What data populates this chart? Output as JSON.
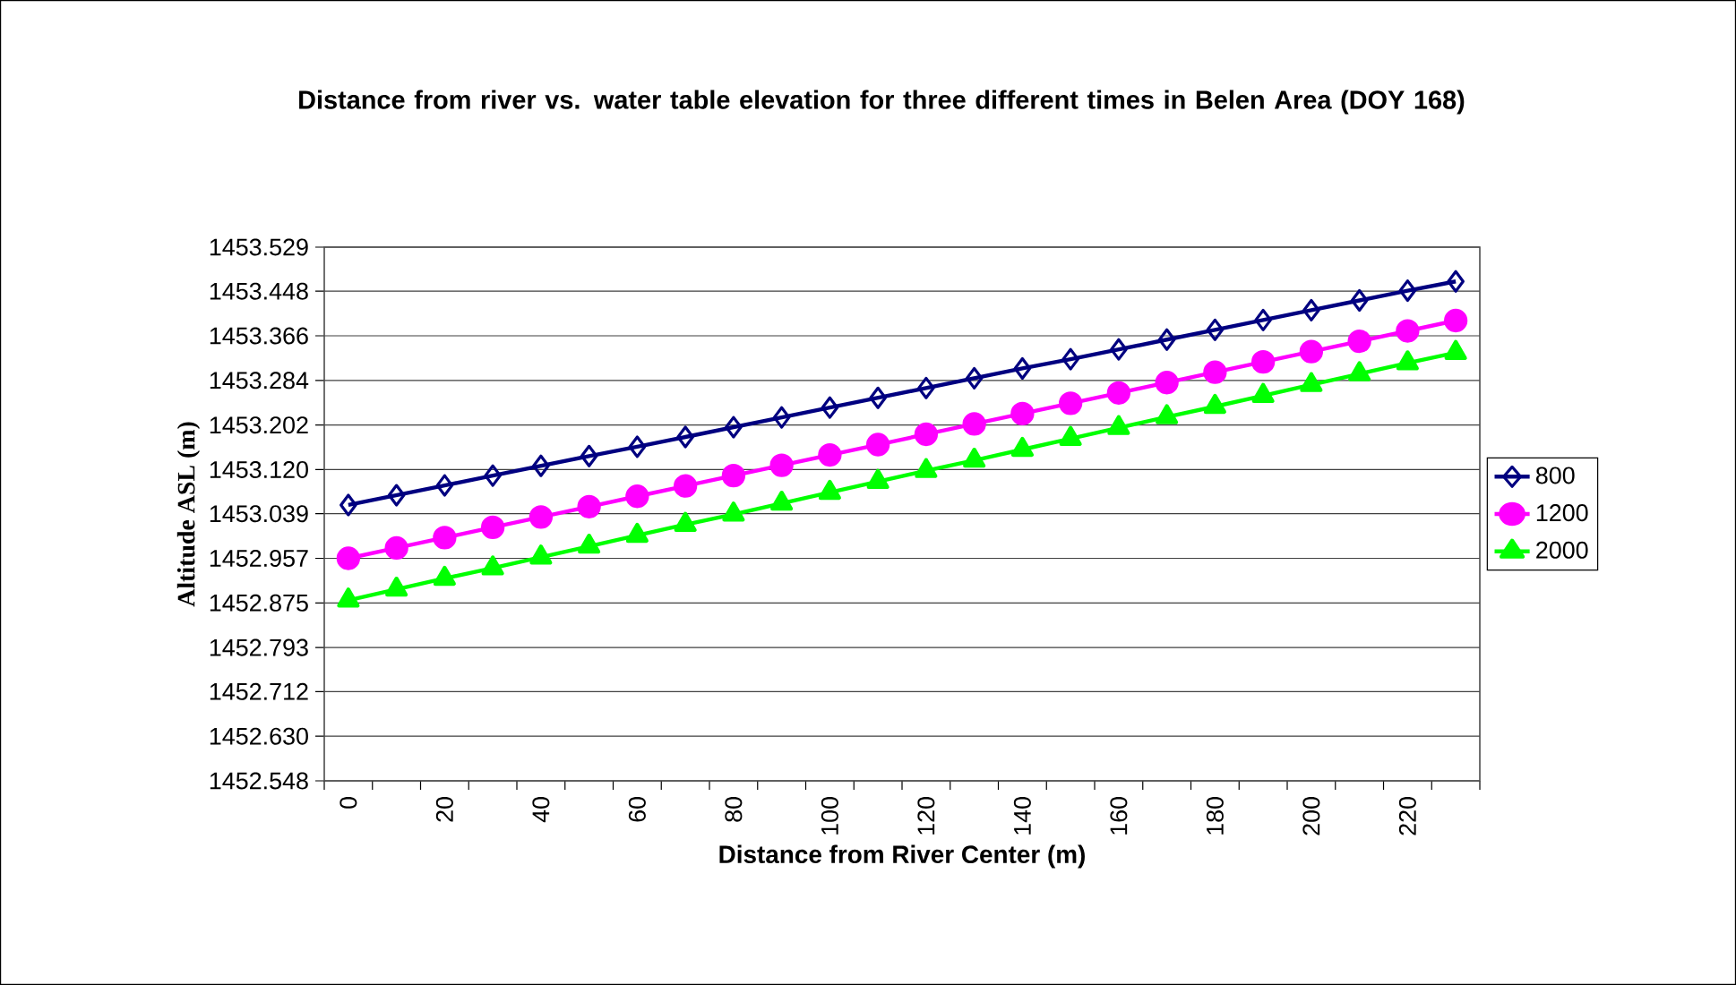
{
  "chart_data": {
    "type": "line",
    "title": "Distance from river vs. water table elevation for three different times in Belen  Area (DOY 168)",
    "xlabel": "Distance from River Center (m)",
    "ylabel": "Altitude ASL (m)",
    "categories": [
      "0",
      null,
      "20",
      null,
      "40",
      null,
      "60",
      null,
      "80",
      null,
      "100",
      null,
      "120",
      null,
      "140",
      null,
      "160",
      null,
      "180",
      null,
      "200",
      null,
      "220",
      null
    ],
    "series": [
      {
        "name": "800",
        "color": "#000080",
        "marker": "diamond",
        "values": [
          1453.055,
          1453.073,
          1453.091,
          1453.109,
          1453.127,
          1453.145,
          1453.162,
          1453.18,
          1453.198,
          1453.216,
          1453.234,
          1453.252,
          1453.27,
          1453.288,
          1453.306,
          1453.323,
          1453.341,
          1453.359,
          1453.377,
          1453.395,
          1453.413,
          1453.431,
          1453.449,
          1453.466
        ]
      },
      {
        "name": "1200",
        "color": "#ff00ff",
        "marker": "circle",
        "values": [
          1452.957,
          1452.976,
          1452.995,
          1453.014,
          1453.033,
          1453.052,
          1453.071,
          1453.09,
          1453.109,
          1453.128,
          1453.147,
          1453.166,
          1453.185,
          1453.204,
          1453.223,
          1453.242,
          1453.261,
          1453.28,
          1453.299,
          1453.318,
          1453.337,
          1453.356,
          1453.375,
          1453.394
        ]
      },
      {
        "name": "2000",
        "color": "#00ff00",
        "marker": "triangle",
        "values": [
          1452.88,
          1452.9,
          1452.92,
          1452.939,
          1452.959,
          1452.979,
          1452.999,
          1453.019,
          1453.038,
          1453.058,
          1453.078,
          1453.098,
          1453.118,
          1453.137,
          1453.157,
          1453.177,
          1453.197,
          1453.217,
          1453.236,
          1453.256,
          1453.276,
          1453.296,
          1453.316,
          1453.335
        ]
      }
    ],
    "ylim": [
      1452.548,
      1453.529
    ],
    "yticks": [
      {
        "value": 1452.548,
        "label": "1452.548"
      },
      {
        "value": 1452.63,
        "label": "1452.630"
      },
      {
        "value": 1452.712,
        "label": "1452.712"
      },
      {
        "value": 1452.793,
        "label": "1452.793"
      },
      {
        "value": 1452.875,
        "label": "1452.875"
      },
      {
        "value": 1452.957,
        "label": "1452.957"
      },
      {
        "value": 1453.039,
        "label": "1453.039"
      },
      {
        "value": 1453.12,
        "label": "1453.120"
      },
      {
        "value": 1453.202,
        "label": "1453.202"
      },
      {
        "value": 1453.284,
        "label": "1453.284"
      },
      {
        "value": 1453.366,
        "label": "1453.366"
      },
      {
        "value": 1453.448,
        "label": "1453.448"
      },
      {
        "value": 1453.529,
        "label": "1453.529"
      }
    ],
    "grid": "y",
    "legend": "right"
  }
}
